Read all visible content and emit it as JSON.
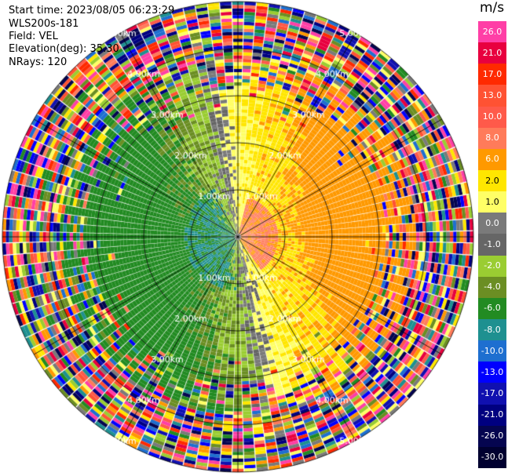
{
  "header": {
    "start_time": "Start time: 2023/08/05 06:23:29",
    "instrument": "WLS200s-181",
    "field": "Field: VEL",
    "elevation": "Elevation(deg): 35.30",
    "nrays": "NRays: 120"
  },
  "colorbar": {
    "unit": "m/s",
    "bins": [
      {
        "label": "26.0",
        "color": "#ff3fa6"
      },
      {
        "label": "21.0",
        "color": "#e8003f"
      },
      {
        "label": "17.0",
        "color": "#ff2a00"
      },
      {
        "label": "13.0",
        "color": "#ff5233"
      },
      {
        "label": "10.0",
        "color": "#ff5a4a"
      },
      {
        "label": "8.0",
        "color": "#ff7b5a"
      },
      {
        "label": "6.0",
        "color": "#ff9900"
      },
      {
        "label": "2.0",
        "color": "#ffe600"
      },
      {
        "label": "1.0",
        "color": "#ffff66"
      },
      {
        "label": "0.0",
        "color": "#7a7a7a"
      },
      {
        "label": "-1.0",
        "color": "#666666"
      },
      {
        "label": "-2.0",
        "color": "#9acd32"
      },
      {
        "label": "-4.0",
        "color": "#6b8e23"
      },
      {
        "label": "-6.0",
        "color": "#228b22"
      },
      {
        "label": "-8.0",
        "color": "#1e9090"
      },
      {
        "label": "-10.0",
        "color": "#1e6fd0"
      },
      {
        "label": "-13.0",
        "color": "#0000ff"
      },
      {
        "label": "-17.0",
        "color": "#1010b0"
      },
      {
        "label": "-21.0",
        "color": "#000080"
      },
      {
        "label": "-26.0",
        "color": "#050550"
      },
      {
        "label": "-30.0",
        "color": "#000030"
      }
    ]
  },
  "range_rings": {
    "labels": [
      "1.00km",
      "2.00km",
      "3.00km",
      "4.00km",
      "5.00km"
    ]
  },
  "chart_data": {
    "type": "heatmap",
    "title": "",
    "field": "VEL",
    "units": "m/s",
    "nrays": 120,
    "elevation_deg": 35.3,
    "range_rings_km": [
      1,
      2,
      3,
      4,
      5
    ],
    "color_scale": [
      -30,
      -26,
      -21,
      -17,
      -13,
      -10,
      -8,
      -6,
      -4,
      -2,
      -1,
      0,
      1,
      2,
      6,
      8,
      10,
      13,
      17,
      21,
      26
    ],
    "pattern": "near ranges: positive (orange/yellow) to the north-east, negative (green) to the south-west; beyond about 3.5 km mostly noise"
  }
}
